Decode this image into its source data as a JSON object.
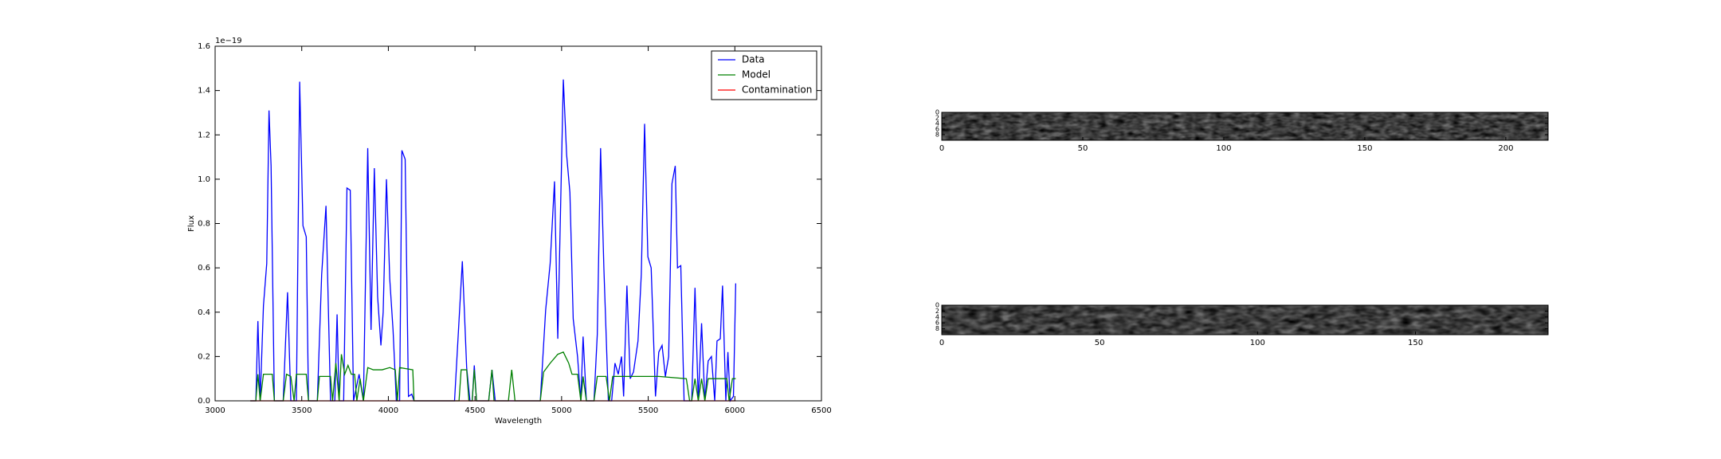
{
  "chart_data": [
    {
      "type": "line",
      "x_label": "Wavelength",
      "y_label": "Flux",
      "y_scale_label": "1e−19",
      "xlim": [
        3000,
        6500
      ],
      "xticks": [
        3000,
        3500,
        4000,
        4500,
        5000,
        5500,
        6000,
        6500
      ],
      "ylim": [
        0,
        1.6
      ],
      "yticks": [
        {
          "value": 0,
          "label": "0.0"
        },
        {
          "value": 0.2,
          "label": "0.2"
        },
        {
          "value": 0.4,
          "label": "0.4"
        },
        {
          "value": 0.6,
          "label": "0.6"
        },
        {
          "value": 0.8,
          "label": "0.8"
        },
        {
          "value": 1.0,
          "label": "1.0"
        },
        {
          "value": 1.2,
          "label": "1.2"
        },
        {
          "value": 1.4,
          "label": "1.4"
        },
        {
          "value": 1.6,
          "label": "1.6"
        }
      ],
      "legend": "upper right",
      "series": [
        {
          "name": "Data",
          "color": "#0000ff",
          "x": [
            3203,
            3235,
            3247,
            3260,
            3279,
            3298,
            3311,
            3323,
            3342,
            3393,
            3418,
            3437,
            3469,
            3488,
            3507,
            3526,
            3539,
            3590,
            3615,
            3640,
            3666,
            3691,
            3704,
            3716,
            3742,
            3761,
            3780,
            3799,
            3831,
            3856,
            3881,
            3900,
            3919,
            3938,
            3957,
            3970,
            3989,
            4008,
            4027,
            4046,
            4065,
            4078,
            4097,
            4116,
            4135,
            4148,
            4382,
            4427,
            4452,
            4471,
            4484,
            4496,
            4509,
            4579,
            4598,
            4617,
            4877,
            4908,
            4934,
            4959,
            4978,
            5010,
            5029,
            5048,
            5067,
            5092,
            5111,
            5124,
            5143,
            5187,
            5206,
            5225,
            5244,
            5270,
            5289,
            5308,
            5327,
            5346,
            5358,
            5377,
            5396,
            5415,
            5441,
            5460,
            5479,
            5498,
            5517,
            5542,
            5561,
            5580,
            5599,
            5618,
            5637,
            5656,
            5669,
            5688,
            5707,
            5751,
            5770,
            5789,
            5808,
            5827,
            5846,
            5865,
            5884,
            5897,
            5916,
            5929,
            5948,
            5960,
            5973,
            5992,
            6005
          ],
          "values": [
            0,
            0,
            0.36,
            0,
            0.43,
            0.62,
            1.31,
            1.06,
            0,
            0,
            0.49,
            0,
            0,
            1.44,
            0.79,
            0.74,
            0,
            0,
            0.57,
            0.88,
            0,
            0,
            0.39,
            0,
            0,
            0.96,
            0.95,
            0,
            0.12,
            0,
            1.14,
            0.32,
            1.05,
            0.47,
            0.25,
            0.4,
            1.0,
            0.55,
            0.32,
            0,
            0,
            1.13,
            1.09,
            0.02,
            0.03,
            0,
            0,
            0.63,
            0.15,
            0,
            0,
            0.16,
            0,
            0,
            0.14,
            0,
            0,
            0.41,
            0.62,
            0.99,
            0.28,
            1.45,
            1.11,
            0.94,
            0.37,
            0.2,
            0,
            0.29,
            0,
            0,
            0.3,
            1.14,
            0.6,
            0,
            0,
            0.17,
            0.12,
            0.2,
            0.02,
            0.52,
            0.1,
            0.13,
            0.27,
            0.57,
            1.25,
            0.65,
            0.6,
            0.02,
            0.22,
            0.25,
            0.11,
            0.2,
            0.98,
            1.06,
            0.6,
            0.61,
            0,
            0,
            0.51,
            0,
            0.35,
            0,
            0.18,
            0.2,
            0,
            0.27,
            0.28,
            0.52,
            0,
            0.22,
            0,
            0.02,
            0.53
          ]
        },
        {
          "name": "Model",
          "color": "#008000",
          "x": [
            3203,
            3235,
            3247,
            3260,
            3279,
            3330,
            3342,
            3393,
            3412,
            3437,
            3456,
            3469,
            3526,
            3539,
            3590,
            3602,
            3666,
            3678,
            3697,
            3716,
            3729,
            3748,
            3767,
            3786,
            3805,
            3818,
            3837,
            3856,
            3881,
            3913,
            3964,
            4008,
            4040,
            4052,
            4065,
            4141,
            4148,
            4408,
            4420,
            4452,
            4465,
            4484,
            4496,
            4509,
            4579,
            4598,
            4610,
            4693,
            4712,
            4731,
            4877,
            4896,
            4934,
            4978,
            5010,
            5041,
            5060,
            5092,
            5111,
            5124,
            5143,
            5187,
            5206,
            5257,
            5276,
            5295,
            5352,
            5371,
            5561,
            5720,
            5739,
            5751,
            5770,
            5789,
            5808,
            5827,
            5846,
            5954,
            5967,
            5986,
            6005
          ],
          "values": [
            0,
            0,
            0.12,
            0,
            0.12,
            0.12,
            0,
            0,
            0.12,
            0.11,
            0,
            0.12,
            0.12,
            0,
            0,
            0.11,
            0.11,
            0,
            0.17,
            0,
            0.21,
            0.12,
            0.16,
            0.12,
            0.12,
            0,
            0.1,
            0,
            0.15,
            0.14,
            0.14,
            0.15,
            0.14,
            0,
            0.15,
            0.14,
            0,
            0,
            0.14,
            0.14,
            0,
            0,
            0.14,
            0,
            0,
            0.14,
            0,
            0,
            0.14,
            0,
            0,
            0.13,
            0.17,
            0.21,
            0.22,
            0.17,
            0.12,
            0.12,
            0,
            0.11,
            0,
            0,
            0.11,
            0.11,
            0,
            0.11,
            0.11,
            0.11,
            0.11,
            0.1,
            0,
            0,
            0.1,
            0,
            0.1,
            0,
            0.1,
            0.1,
            0,
            0.1,
            0.1
          ]
        },
        {
          "name": "Contamination",
          "color": "#ff0000",
          "x": [
            3203,
            6005
          ],
          "values": [
            0,
            0
          ]
        }
      ]
    },
    {
      "type": "image",
      "xlim": [
        0,
        215
      ],
      "xticks": [
        0,
        50,
        100,
        150,
        200
      ],
      "ylim": [
        0,
        10
      ],
      "yticks": [
        0,
        2,
        4,
        6,
        8
      ]
    },
    {
      "type": "image",
      "xlim": [
        0,
        192
      ],
      "xticks": [
        0,
        50,
        100,
        150
      ],
      "ylim": [
        0,
        10
      ],
      "yticks": [
        0,
        2,
        4,
        6,
        8
      ]
    }
  ]
}
